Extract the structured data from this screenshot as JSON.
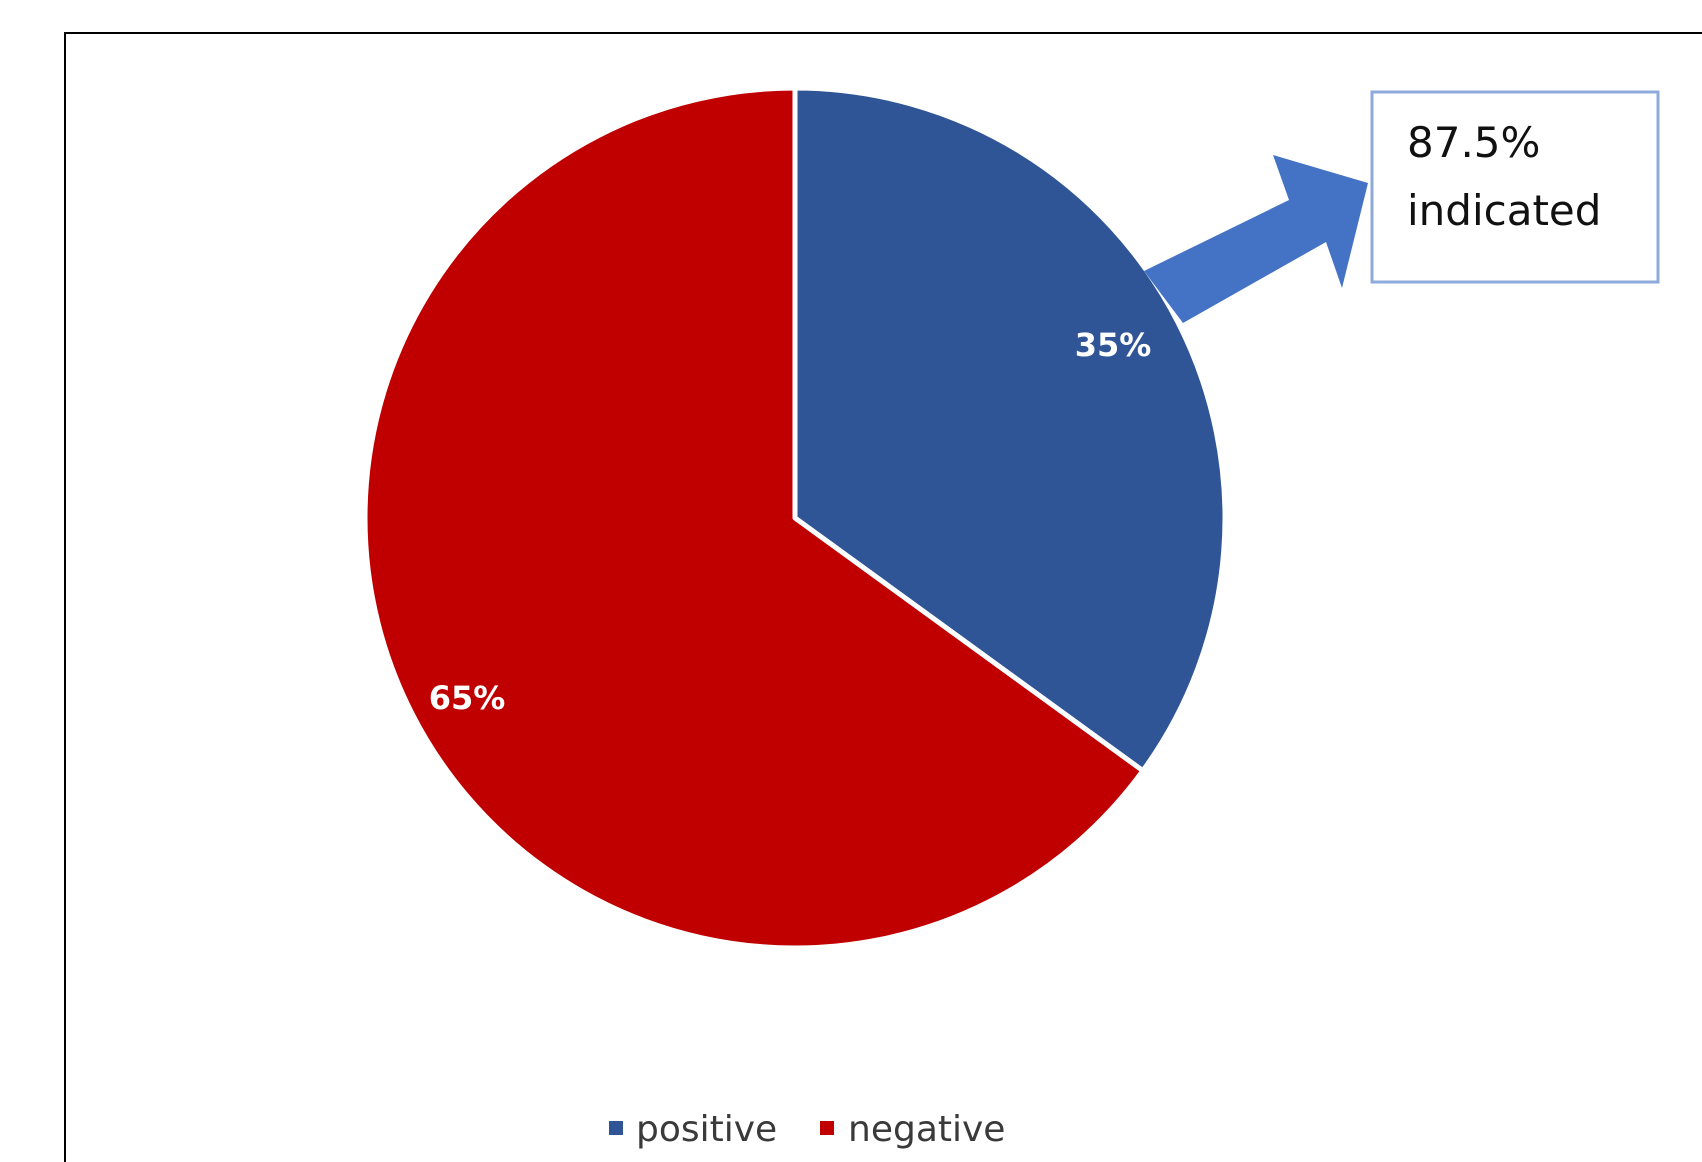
{
  "chart_data": {
    "type": "pie",
    "categories": [
      "positive",
      "negative"
    ],
    "values": [
      35,
      65
    ],
    "labels": [
      "35%",
      "65%"
    ],
    "colors": [
      "#2f5597",
      "#c00000"
    ],
    "start_angle_deg": 0,
    "direction": "clockwise",
    "legend": {
      "placement": "bottom",
      "entries": [
        "positive",
        "negative"
      ]
    },
    "annotation": {
      "target": "positive",
      "lines": [
        "87.5%",
        "indicated"
      ],
      "arrow_color": "#4472c4",
      "box_border_color": "#8eaadb"
    }
  }
}
